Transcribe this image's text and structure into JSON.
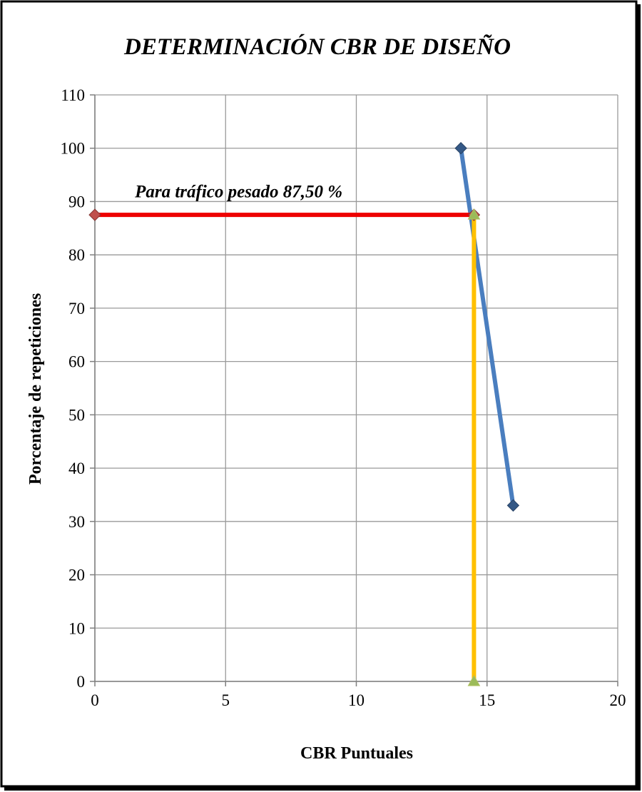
{
  "chart_data": {
    "type": "line",
    "title": "DETERMINACIÓN CBR DE DISEÑO",
    "xlabel": "CBR Puntuales",
    "ylabel": "Porcentaje de repeticiones",
    "xlim": [
      0,
      20
    ],
    "ylim": [
      0,
      110
    ],
    "xticks": [
      0,
      5,
      10,
      15,
      20
    ],
    "yticks": [
      0,
      10,
      20,
      30,
      40,
      50,
      60,
      70,
      80,
      90,
      100,
      110
    ],
    "grid": true,
    "legend": "none",
    "series": [
      {
        "points": [
          [
            14,
            100
          ],
          [
            16,
            33
          ]
        ],
        "color": "#4a7ebf",
        "marker": "diamond"
      },
      {
        "points": [
          [
            0,
            87.5
          ],
          [
            14.5,
            87.5
          ]
        ],
        "color": "#ee0000",
        "marker": "diamond"
      },
      {
        "points": [
          [
            14.5,
            87.5
          ],
          [
            14.5,
            0
          ]
        ],
        "color": "#ffc000",
        "marker": "triangle"
      }
    ],
    "annotations": [
      {
        "text": "Para tráfico pesado 87,50 %",
        "x": 5.5,
        "y": 90
      }
    ]
  }
}
